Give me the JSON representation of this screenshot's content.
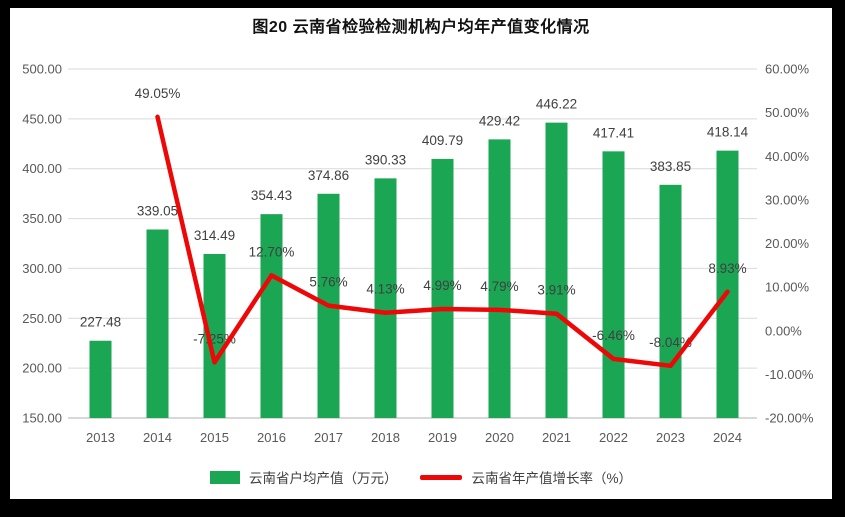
{
  "title": "图20  云南省检验检测机构户均年产值变化情况",
  "legend": {
    "bar_label": "云南省户均产值（万元）",
    "line_label": "云南省年产值增长率（%）"
  },
  "colors": {
    "bar": "#1aa653",
    "line": "#ee0707",
    "grid": "#d9d9d9",
    "axis_line": "#b0b0b0",
    "tick_text": "#595959",
    "data_label_text": "#404040",
    "background": "#ffffff",
    "frame": "#000000"
  },
  "chart_data": {
    "type": "bar",
    "subtype": "combo-bar-line-dual-axis",
    "title": "图20  云南省检验检测机构户均年产值变化情况",
    "categories": [
      "2013",
      "2014",
      "2015",
      "2016",
      "2017",
      "2018",
      "2019",
      "2020",
      "2021",
      "2022",
      "2023",
      "2024"
    ],
    "series": [
      {
        "name": "云南省户均产值（万元）",
        "type": "bar",
        "axis": "left",
        "color": "#1aa653",
        "values": [
          227.48,
          339.05,
          314.49,
          354.43,
          374.86,
          390.33,
          409.79,
          429.42,
          446.22,
          417.41,
          383.85,
          418.14
        ],
        "labels": [
          "227.48",
          "339.05",
          "314.49",
          "354.43",
          "374.86",
          "390.33",
          "409.79",
          "429.42",
          "446.22",
          "417.41",
          "383.85",
          "418.14"
        ]
      },
      {
        "name": "云南省年产值增长率（%）",
        "type": "line",
        "axis": "right",
        "color": "#ee0707",
        "values": [
          null,
          49.05,
          -7.25,
          12.7,
          5.76,
          4.13,
          4.99,
          4.79,
          3.91,
          -6.46,
          -8.04,
          8.93
        ],
        "labels": [
          null,
          "49.05%",
          "-7.25%",
          "12.70%",
          "5.76%",
          "4.13%",
          "4.99%",
          "4.79%",
          "3.91%",
          "-6.46%",
          "-8.04%",
          "8.93%"
        ]
      }
    ],
    "left_axis": {
      "min": 150,
      "max": 500,
      "step": 50,
      "ticks": [
        "500.00",
        "450.00",
        "400.00",
        "350.00",
        "300.00",
        "250.00",
        "200.00",
        "150.00"
      ]
    },
    "right_axis": {
      "min": -20,
      "max": 60,
      "step": 10,
      "ticks": [
        "60.00%",
        "50.00%",
        "40.00%",
        "30.00%",
        "20.00%",
        "10.00%",
        "0.00%",
        "-10.00%",
        "-20.00%"
      ]
    },
    "grid": true,
    "legend_position": "bottom",
    "xlabel": "",
    "ylabel": ""
  }
}
